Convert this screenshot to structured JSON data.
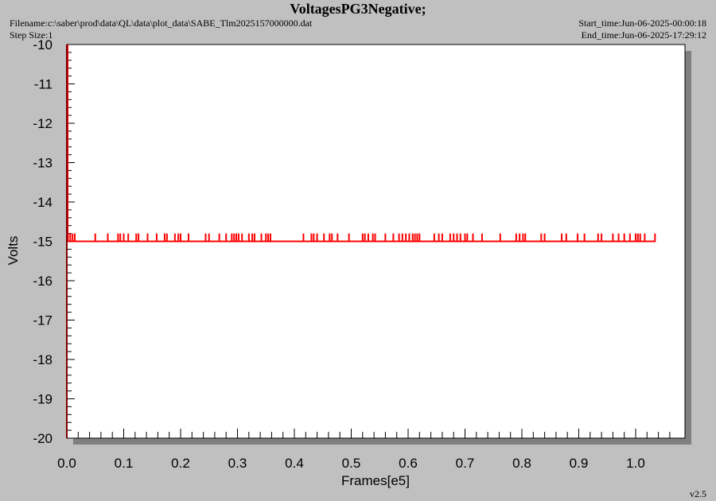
{
  "header": {
    "title": "VoltagesPG3Negative;",
    "filename": "Filename:c:\\saber\\prod\\data\\QL\\data\\plot_data\\SABE_Tlm2025157000000.dat",
    "step_size": "Step Size:1",
    "start_time": "Start_time:Jun-06-2025-00:00:18",
    "end_time": "End_time:Jun-06-2025-17:29:12",
    "version": "v2.5"
  },
  "colors": {
    "background": "#c0c0c0",
    "plot_area": "#ffffff",
    "shadow": "#808080",
    "series": "#ff0000",
    "y_axis": "#800000"
  },
  "chart_data": {
    "type": "line",
    "title": "VoltagesPG3Negative;",
    "xlabel": "Frames[e5]",
    "ylabel": "Volts",
    "xlim": [
      0,
      1.09
    ],
    "ylim": [
      -20,
      -10
    ],
    "x_ticks": [
      "0.0",
      "0.1",
      "0.2",
      "0.3",
      "0.4",
      "0.5",
      "0.6",
      "0.7",
      "0.8",
      "0.9",
      "1.0"
    ],
    "y_ticks": [
      "-10",
      "-11",
      "-12",
      "-13",
      "-14",
      "-15",
      "-16",
      "-17",
      "-18",
      "-19",
      "-20"
    ],
    "grid": false,
    "series": [
      {
        "baseline": -15.0,
        "x_range": [
          0.0,
          1.035
        ],
        "spike_level": -14.8,
        "spike_x": [
          0.002,
          0.006,
          0.01,
          0.014,
          0.05,
          0.072,
          0.09,
          0.094,
          0.1,
          0.108,
          0.122,
          0.126,
          0.142,
          0.158,
          0.172,
          0.176,
          0.19,
          0.196,
          0.2,
          0.214,
          0.244,
          0.25,
          0.268,
          0.28,
          0.29,
          0.294,
          0.298,
          0.302,
          0.308,
          0.32,
          0.326,
          0.33,
          0.342,
          0.35,
          0.354,
          0.358,
          0.416,
          0.43,
          0.434,
          0.44,
          0.452,
          0.462,
          0.466,
          0.476,
          0.496,
          0.52,
          0.524,
          0.53,
          0.538,
          0.542,
          0.56,
          0.574,
          0.584,
          0.59,
          0.596,
          0.602,
          0.608,
          0.612,
          0.616,
          0.62,
          0.646,
          0.654,
          0.66,
          0.674,
          0.68,
          0.686,
          0.692,
          0.7,
          0.704,
          0.714,
          0.73,
          0.762,
          0.79,
          0.796,
          0.802,
          0.806,
          0.834,
          0.84,
          0.87,
          0.878,
          0.898,
          0.91,
          0.934,
          0.94,
          0.96,
          0.97,
          0.98,
          0.99,
          1.0,
          1.004,
          1.008,
          1.016,
          1.034
        ]
      }
    ]
  }
}
